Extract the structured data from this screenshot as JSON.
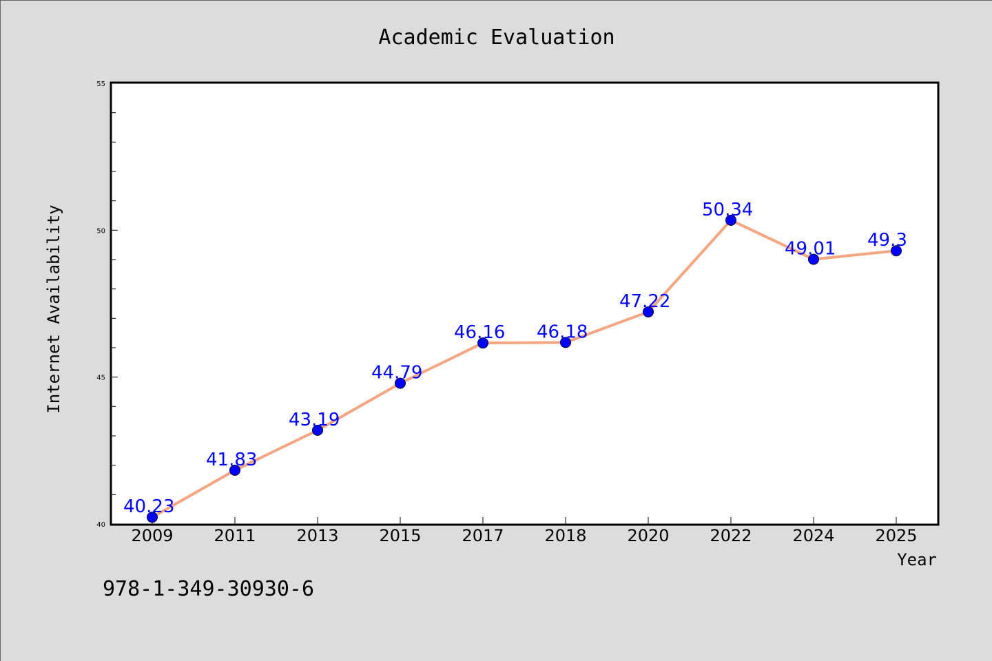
{
  "chart_data": {
    "type": "line",
    "title": "Academic Evaluation",
    "xlabel": "Year",
    "ylabel": "Internet Availability",
    "categories": [
      "2009",
      "2011",
      "2013",
      "2015",
      "2017",
      "2018",
      "2020",
      "2022",
      "2024",
      "2025"
    ],
    "series": [
      {
        "values": [
          40.23,
          41.83,
          43.19,
          44.79,
          46.16,
          46.18,
          47.22,
          50.34,
          49.01,
          49.3
        ]
      }
    ],
    "data_labels": [
      "40.23",
      "41.83",
      "43.19",
      "44.79",
      "46.16",
      "46.18",
      "47.22",
      "50.34",
      "49.01",
      "49.3"
    ],
    "ylim": [
      40,
      55
    ],
    "y_major_ticks": [
      "40",
      "45",
      "50",
      "55"
    ],
    "grid": false,
    "legend": "none",
    "colors": {
      "background": "#dcdcdc",
      "plot_background": "#ffffff",
      "line": "#f4a582",
      "marker": "#0000ff",
      "label": "#0000ff"
    }
  },
  "footer": {
    "isbn": "978-1-349-30930-6"
  }
}
